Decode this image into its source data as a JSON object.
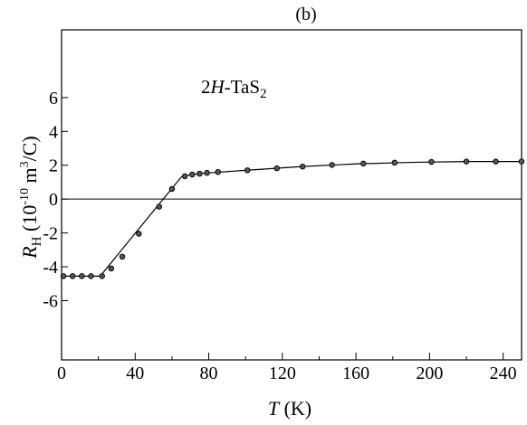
{
  "chart_data": {
    "type": "scatter",
    "panel_label": "(b)",
    "annotation": {
      "prefix": "2",
      "italic": "H",
      "mid": "-TaS",
      "sub": "2"
    },
    "xlabel": {
      "italic": "T",
      "rest": " (K)"
    },
    "ylabel": {
      "sym": "R",
      "sub": "H",
      "open": " (10",
      "exp": "-10",
      "mid": " m",
      "exp2": "3",
      "close": "/C)"
    },
    "xlim": [
      0,
      250
    ],
    "ylim": [
      -9.5,
      10
    ],
    "x_ticks": [
      0,
      40,
      80,
      120,
      160,
      200,
      240
    ],
    "x_tick_labels": [
      "0",
      "40",
      "80",
      "120",
      "160",
      "200",
      "240"
    ],
    "y_ticks": [
      6,
      4,
      2,
      0,
      -2,
      -4,
      -6
    ],
    "y_tick_labels": [
      "6",
      "4",
      "2",
      "0",
      "-2",
      "-4",
      "-6"
    ],
    "zero_line": 0,
    "grid": false,
    "series": [
      {
        "x": [
          1,
          6,
          11,
          16,
          22,
          27,
          33,
          42,
          53,
          60,
          67,
          71,
          75,
          79,
          85,
          101,
          117,
          131,
          147,
          164,
          181,
          201,
          220,
          236,
          250
        ],
        "y": [
          -4.55,
          -4.55,
          -4.55,
          -4.55,
          -4.55,
          -4.1,
          -3.4,
          -2.05,
          -0.45,
          0.6,
          1.35,
          1.45,
          1.5,
          1.55,
          1.6,
          1.7,
          1.82,
          1.92,
          2.02,
          2.1,
          2.15,
          2.2,
          2.22,
          2.22,
          2.22
        ]
      }
    ],
    "fit_line": {
      "x": [
        0,
        21,
        65,
        70,
        80,
        100,
        130,
        160,
        190,
        220,
        250
      ],
      "y": [
        -4.55,
        -4.55,
        1.3,
        1.45,
        1.55,
        1.7,
        1.92,
        2.08,
        2.17,
        2.22,
        2.22
      ]
    }
  }
}
